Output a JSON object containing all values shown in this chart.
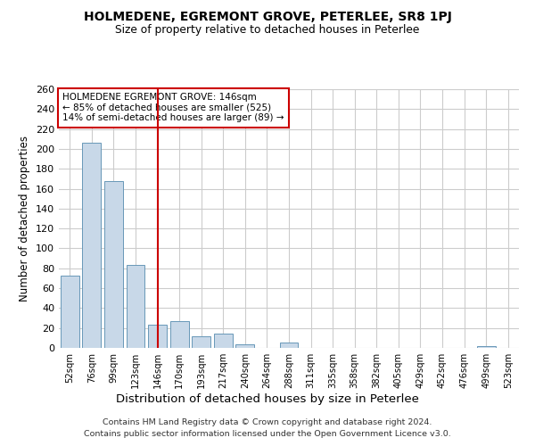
{
  "title": "HOLMEDENE, EGREMONT GROVE, PETERLEE, SR8 1PJ",
  "subtitle": "Size of property relative to detached houses in Peterlee",
  "xlabel": "Distribution of detached houses by size in Peterlee",
  "ylabel": "Number of detached properties",
  "footer_line1": "Contains HM Land Registry data © Crown copyright and database right 2024.",
  "footer_line2": "Contains public sector information licensed under the Open Government Licence v3.0.",
  "annotation_line1": "HOLMEDENE EGREMONT GROVE: 146sqm",
  "annotation_line2": "← 85% of detached houses are smaller (525)",
  "annotation_line3": "14% of semi-detached houses are larger (89) →",
  "categories": [
    "52sqm",
    "76sqm",
    "99sqm",
    "123sqm",
    "146sqm",
    "170sqm",
    "193sqm",
    "217sqm",
    "240sqm",
    "264sqm",
    "288sqm",
    "311sqm",
    "335sqm",
    "358sqm",
    "382sqm",
    "405sqm",
    "429sqm",
    "452sqm",
    "476sqm",
    "499sqm",
    "523sqm"
  ],
  "values": [
    73,
    206,
    168,
    83,
    23,
    27,
    12,
    14,
    4,
    0,
    5,
    0,
    0,
    0,
    0,
    0,
    0,
    0,
    0,
    2,
    0
  ],
  "bar_color": "#c8d8e8",
  "bar_edge_color": "#6898b8",
  "vline_x_index": 4,
  "vline_color": "#cc0000",
  "annotation_box_edge_color": "#cc0000",
  "background_color": "#ffffff",
  "grid_color": "#cccccc",
  "ylim": [
    0,
    260
  ],
  "yticks": [
    0,
    20,
    40,
    60,
    80,
    100,
    120,
    140,
    160,
    180,
    200,
    220,
    240,
    260
  ]
}
